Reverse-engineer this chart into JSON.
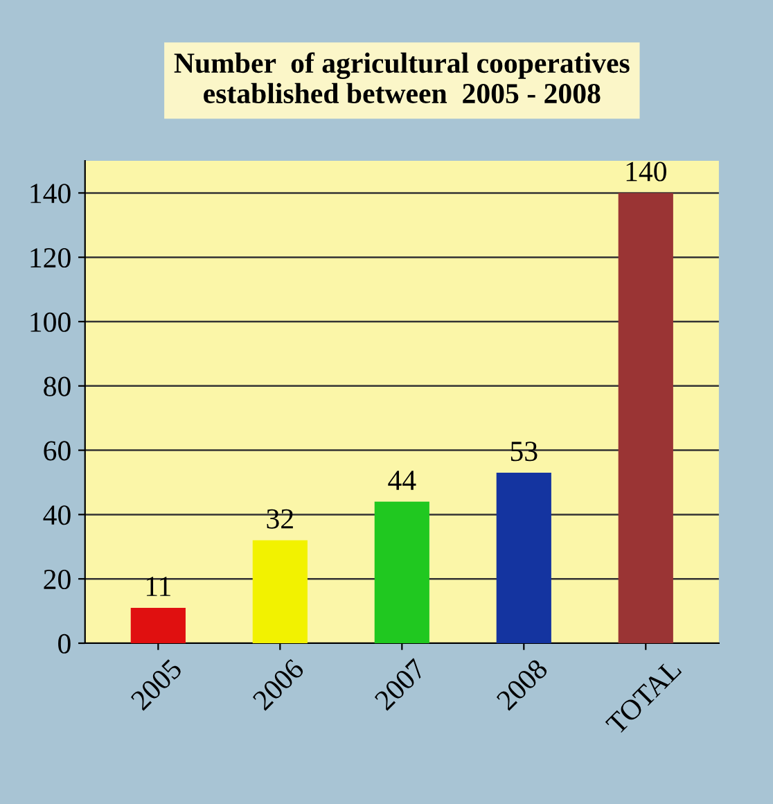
{
  "chart_data": {
    "type": "bar",
    "title": "Number  of agricultural cooperatives\nestablished between  2005 - 2008",
    "categories": [
      "2005",
      "2006",
      "2007",
      "2008",
      "TOTAL"
    ],
    "values": [
      11,
      32,
      44,
      53,
      140
    ],
    "colors": [
      "#e01010",
      "#f2f200",
      "#20c820",
      "#1434a0",
      "#9a3434"
    ],
    "ylim": [
      0,
      150
    ],
    "yticks": [
      0,
      20,
      40,
      60,
      80,
      100,
      120,
      140
    ],
    "grid": "y",
    "data_labels": true
  }
}
